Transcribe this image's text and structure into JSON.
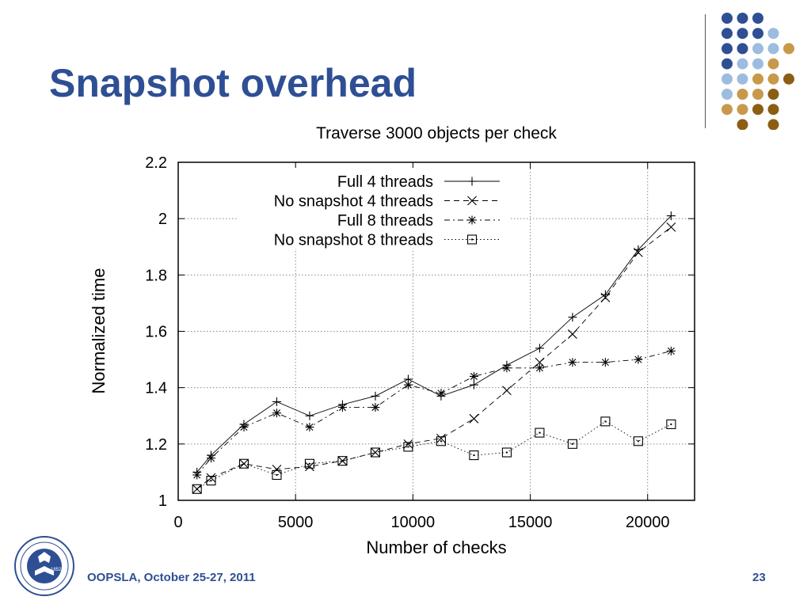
{
  "slide": {
    "title": "Snapshot overhead",
    "footer": "OOPSLA, October 25-27, 2011",
    "page_number": "23",
    "accent_color": "#2e4f94",
    "dot_colors": [
      "#2e4f94",
      "#9dbcdf",
      "#c8994b",
      "#8b5e14"
    ],
    "logo_text": "UNIVERSITATIS TUFTENSIS SIGILLUM PAX ET LUX 1852"
  },
  "chart_data": {
    "type": "line",
    "title": "Traverse 3000 objects per check",
    "xlabel": "Number of checks",
    "ylabel": "Normalized time",
    "xlim": [
      0,
      22000
    ],
    "ylim": [
      1,
      2.2
    ],
    "xticks": [
      "0",
      "5000",
      "10000",
      "15000",
      "20000"
    ],
    "yticks": [
      "1",
      "1.2",
      "1.4",
      "1.6",
      "1.8",
      "2",
      "2.2"
    ],
    "grid": true,
    "legend_position": "top-left",
    "series": [
      {
        "name": "Full 4 threads",
        "marker": "plus",
        "line": "solid",
        "x": [
          800,
          1400,
          2800,
          4200,
          5600,
          7000,
          8400,
          9800,
          11200,
          12600,
          14000,
          15400,
          16800,
          18200,
          19600,
          21000
        ],
        "y": [
          1.1,
          1.16,
          1.27,
          1.35,
          1.3,
          1.34,
          1.37,
          1.43,
          1.37,
          1.41,
          1.48,
          1.54,
          1.65,
          1.73,
          1.89,
          2.01
        ]
      },
      {
        "name": "No snapshot 4 threads",
        "marker": "cross",
        "line": "dashed",
        "x": [
          800,
          1400,
          2800,
          4200,
          5600,
          7000,
          8400,
          9800,
          11200,
          12600,
          14000,
          15400,
          16800,
          18200,
          19600,
          21000
        ],
        "y": [
          1.04,
          1.08,
          1.13,
          1.11,
          1.12,
          1.14,
          1.17,
          1.2,
          1.22,
          1.29,
          1.39,
          1.49,
          1.59,
          1.72,
          1.88,
          1.97
        ]
      },
      {
        "name": "Full 8 threads",
        "marker": "star",
        "line": "dashdot",
        "x": [
          800,
          1400,
          2800,
          4200,
          5600,
          7000,
          8400,
          9800,
          11200,
          12600,
          14000,
          15400,
          16800,
          18200,
          19600,
          21000
        ],
        "y": [
          1.09,
          1.15,
          1.26,
          1.31,
          1.26,
          1.33,
          1.33,
          1.41,
          1.38,
          1.44,
          1.47,
          1.47,
          1.49,
          1.49,
          1.5,
          1.53
        ]
      },
      {
        "name": "No snapshot 8 threads",
        "marker": "square",
        "line": "dotted",
        "x": [
          800,
          1400,
          2800,
          4200,
          5600,
          7000,
          8400,
          9800,
          11200,
          12600,
          14000,
          15400,
          16800,
          18200,
          19600,
          21000
        ],
        "y": [
          1.04,
          1.07,
          1.13,
          1.09,
          1.13,
          1.14,
          1.17,
          1.19,
          1.21,
          1.16,
          1.17,
          1.24,
          1.2,
          1.28,
          1.21,
          1.27
        ]
      }
    ]
  }
}
